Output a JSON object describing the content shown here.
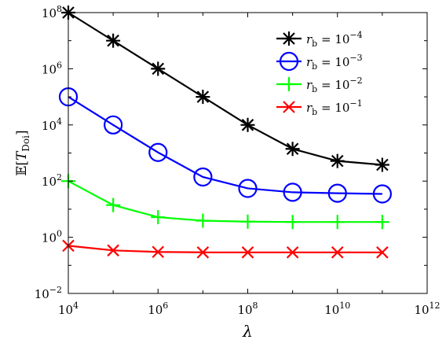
{
  "chart_data": {
    "type": "line",
    "xscale": "log",
    "yscale": "log",
    "xlim": [
      10000,
      1000000000000
    ],
    "ylim": [
      0.01,
      100000000
    ],
    "grid": false,
    "legend_position": "top-right",
    "xlabel": "λ",
    "ylabel": "𝔼[T_Doi]",
    "x_ticks": [
      {
        "base": "10",
        "exp": "4"
      },
      {
        "base": "10",
        "exp": "6"
      },
      {
        "base": "10",
        "exp": "8"
      },
      {
        "base": "10",
        "exp": "10"
      },
      {
        "base": "10",
        "exp": "12"
      }
    ],
    "y_ticks": [
      {
        "base": "10",
        "exp": "−2"
      },
      {
        "base": "10",
        "exp": "0"
      },
      {
        "base": "10",
        "exp": "2"
      },
      {
        "base": "10",
        "exp": "4"
      },
      {
        "base": "10",
        "exp": "6"
      },
      {
        "base": "10",
        "exp": "8"
      }
    ],
    "x": [
      10000,
      100000,
      1000000,
      10000000,
      100000000,
      1000000000,
      10000000000,
      100000000000
    ],
    "series": [
      {
        "name": "r_b = 10^-4",
        "legend_label": {
          "prefix": "r",
          "sub": "b",
          "mid": " = 10",
          "exp": "−4"
        },
        "color": "#000000",
        "marker": "asterisk",
        "values": [
          100000000,
          10000000,
          1000000,
          100000,
          10000,
          1400,
          520,
          380
        ]
      },
      {
        "name": "r_b = 10^-3",
        "legend_label": {
          "prefix": "r",
          "sub": "b",
          "mid": " = 10",
          "exp": "−3"
        },
        "color": "#0000ff",
        "marker": "circle",
        "values": [
          100000,
          10000,
          1050,
          140,
          55,
          40,
          37,
          35
        ]
      },
      {
        "name": "r_b = 10^-2",
        "legend_label": {
          "prefix": "r",
          "sub": "b",
          "mid": " = 10",
          "exp": "−2"
        },
        "color": "#00ff00",
        "marker": "plus",
        "values": [
          100,
          14,
          5.2,
          3.9,
          3.6,
          3.5,
          3.5,
          3.5
        ]
      },
      {
        "name": "r_b = 10^-1",
        "legend_label": {
          "prefix": "r",
          "sub": "b",
          "mid": " = 10",
          "exp": "−1"
        },
        "color": "#ff0000",
        "marker": "x",
        "values": [
          0.5,
          0.34,
          0.3,
          0.29,
          0.29,
          0.29,
          0.29,
          0.29
        ]
      }
    ]
  }
}
